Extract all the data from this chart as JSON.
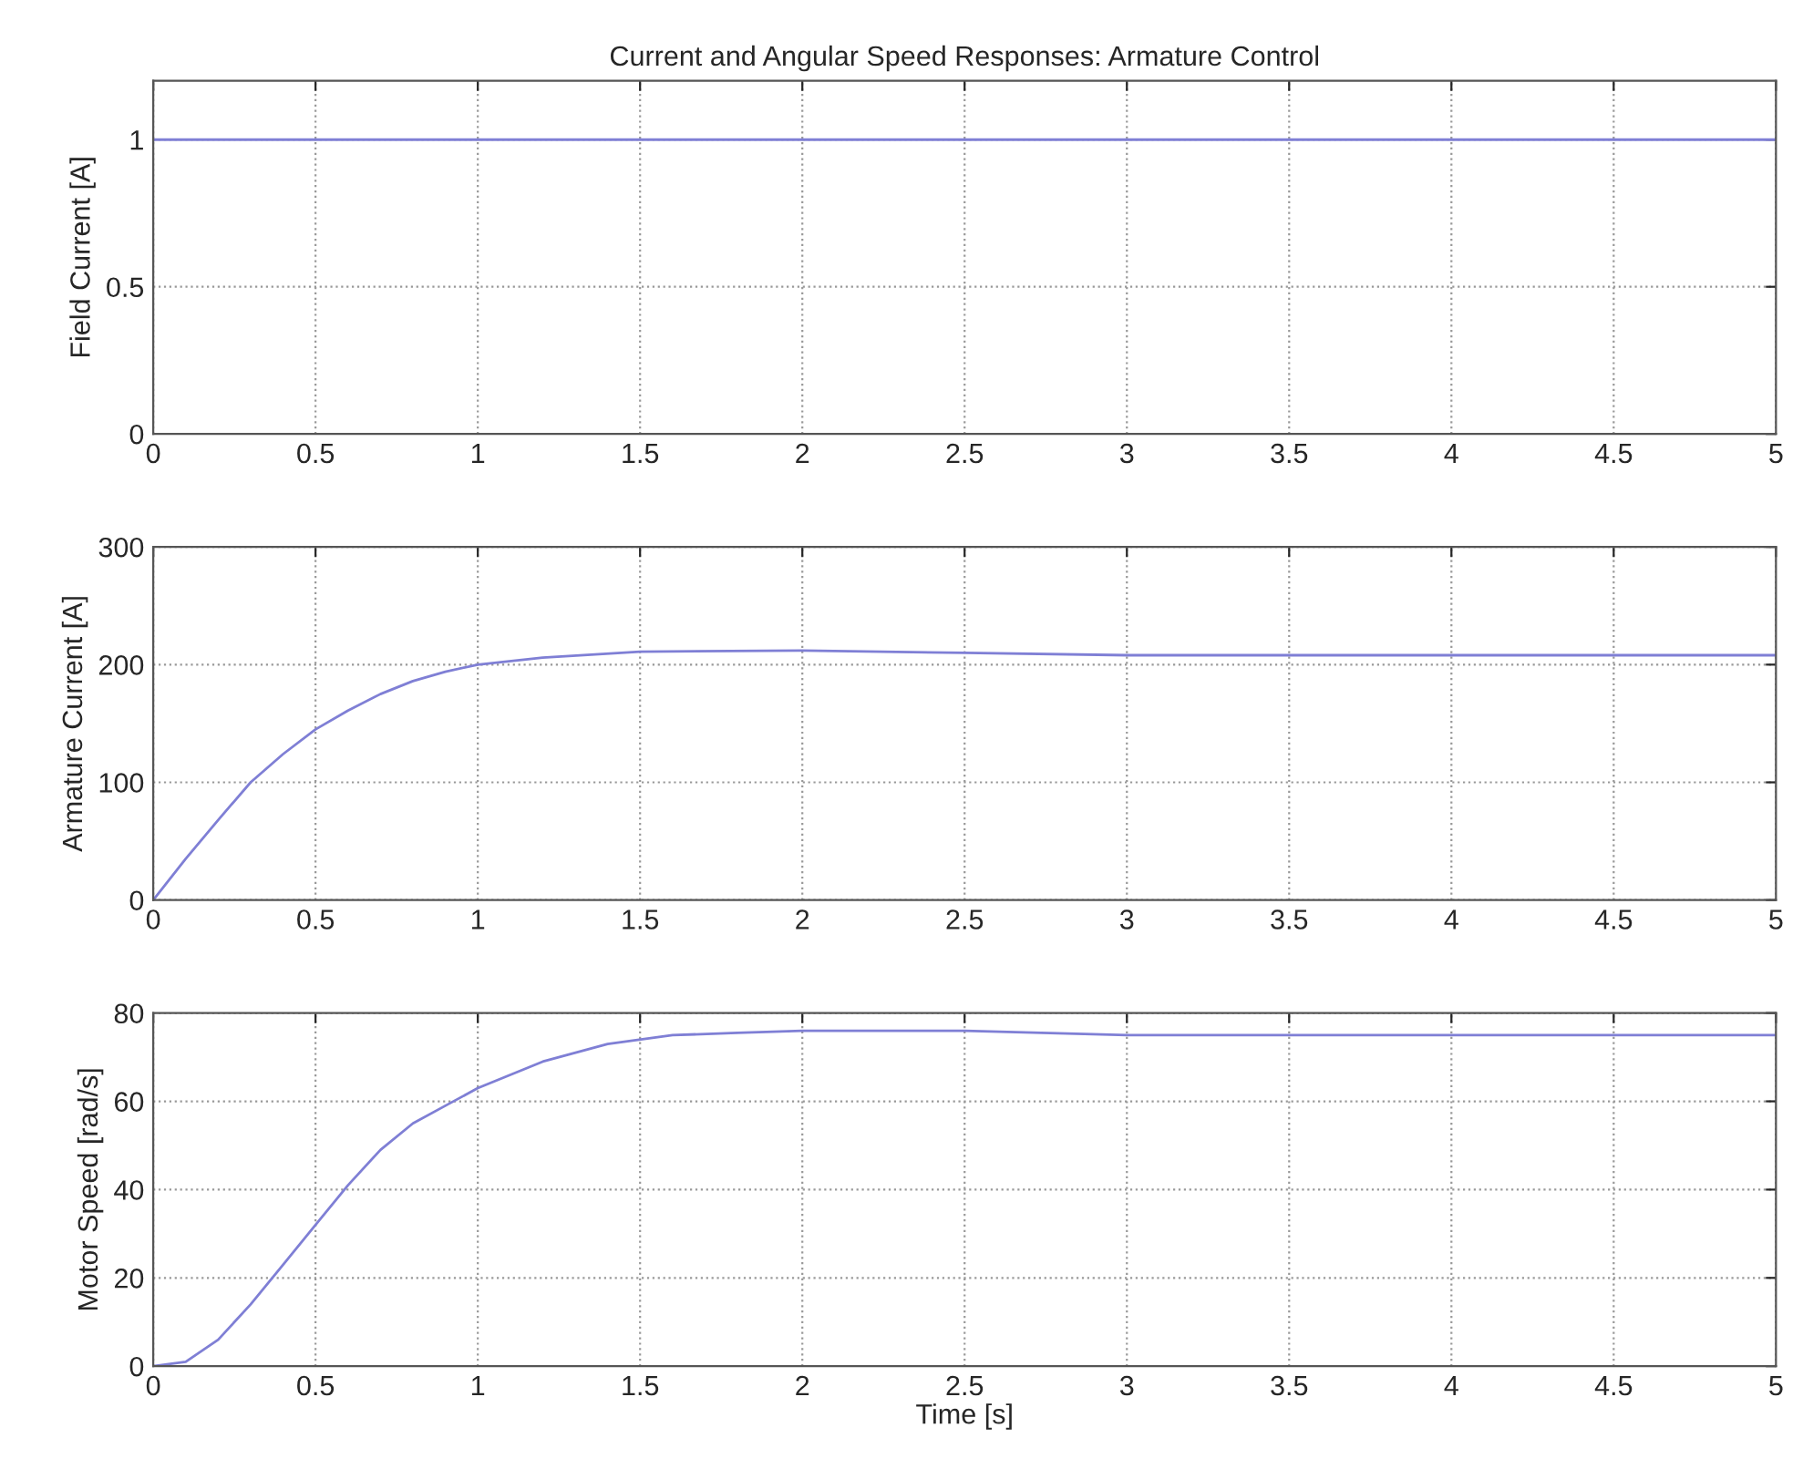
{
  "chart_data": [
    {
      "type": "line",
      "title": "Current and Angular Speed Responses: Armature Control",
      "ylabel": "Field Current [A]",
      "x": [
        0,
        5
      ],
      "series": [
        {
          "color": "#7f7fd5",
          "values": [
            1,
            1
          ]
        }
      ],
      "xlim": [
        0,
        5
      ],
      "ylim": [
        0,
        1.2
      ],
      "xticks": [
        0,
        0.5,
        1,
        1.5,
        2,
        2.5,
        3,
        3.5,
        4,
        4.5,
        5
      ],
      "yticks": [
        0,
        0.5,
        1
      ],
      "grid": true,
      "line_style": "solid"
    },
    {
      "type": "line",
      "ylabel": "Armature Current [A]",
      "x": [
        0,
        0.1,
        0.2,
        0.3,
        0.4,
        0.5,
        0.6,
        0.7,
        0.8,
        0.9,
        1.0,
        1.2,
        1.5,
        2,
        2.5,
        3,
        4,
        5
      ],
      "series": [
        {
          "color": "#7f7fd5",
          "values": [
            0,
            35,
            68,
            100,
            124,
            145,
            161,
            175,
            186,
            194,
            200,
            206,
            211,
            212,
            210,
            208,
            208,
            208
          ]
        }
      ],
      "xlim": [
        0,
        5
      ],
      "ylim": [
        0,
        300
      ],
      "xticks": [
        0,
        0.5,
        1,
        1.5,
        2,
        2.5,
        3,
        3.5,
        4,
        4.5,
        5
      ],
      "yticks": [
        0,
        100,
        200,
        300
      ],
      "grid": true,
      "line_style": "solid"
    },
    {
      "type": "line",
      "xlabel": "Time [s]",
      "ylabel": "Motor Speed [rad/s]",
      "x": [
        0,
        0.1,
        0.2,
        0.3,
        0.4,
        0.5,
        0.6,
        0.7,
        0.8,
        0.9,
        1.0,
        1.2,
        1.4,
        1.6,
        1.8,
        2,
        2.5,
        3,
        4,
        5
      ],
      "series": [
        {
          "color": "#7f7fd5",
          "values": [
            0,
            1,
            6,
            14,
            23,
            32,
            41,
            49,
            55,
            59,
            63,
            69,
            73,
            75,
            75.5,
            76,
            76,
            75,
            75,
            75
          ]
        }
      ],
      "xlim": [
        0,
        5
      ],
      "ylim": [
        0,
        80
      ],
      "xticks": [
        0,
        0.5,
        1,
        1.5,
        2,
        2.5,
        3,
        3.5,
        4,
        4.5,
        5
      ],
      "yticks": [
        0,
        20,
        40,
        60,
        80
      ],
      "grid": true,
      "line_style": "solid"
    }
  ]
}
